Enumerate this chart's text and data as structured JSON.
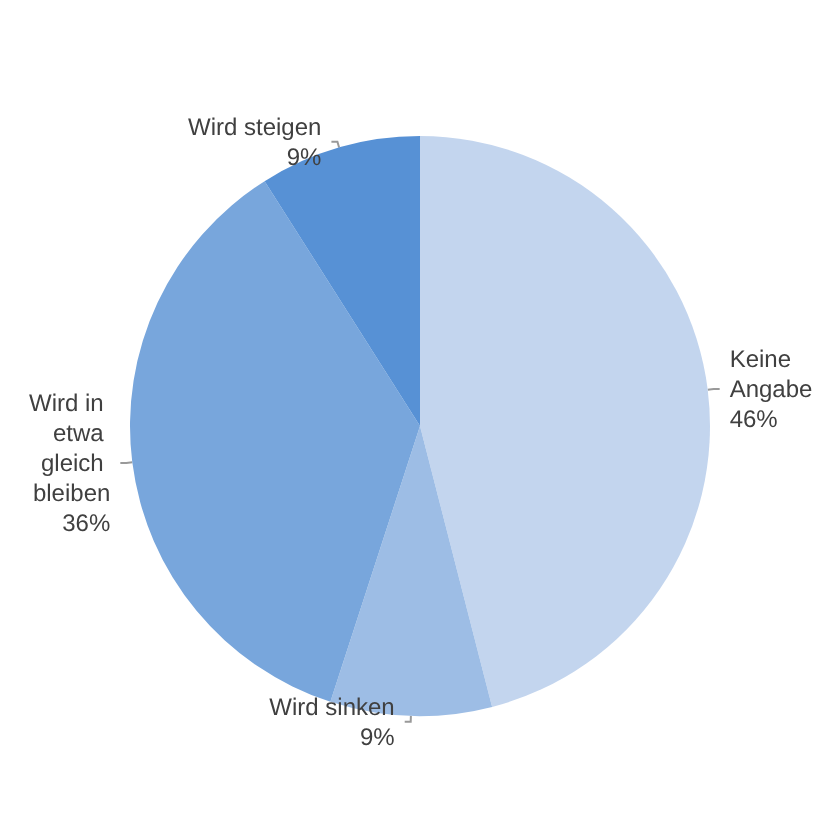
{
  "chart_data": {
    "type": "pie",
    "categories": [
      "Keine Angabe",
      "Wird sinken",
      "Wird in etwa gleich bleiben",
      "Wird steigen"
    ],
    "values": [
      46,
      9,
      36,
      9
    ],
    "value_labels": [
      "46%",
      "9%",
      "36%",
      "9%"
    ],
    "colors": [
      "#c3d5ee",
      "#9dbde5",
      "#78a6dc",
      "#5791d5"
    ]
  }
}
